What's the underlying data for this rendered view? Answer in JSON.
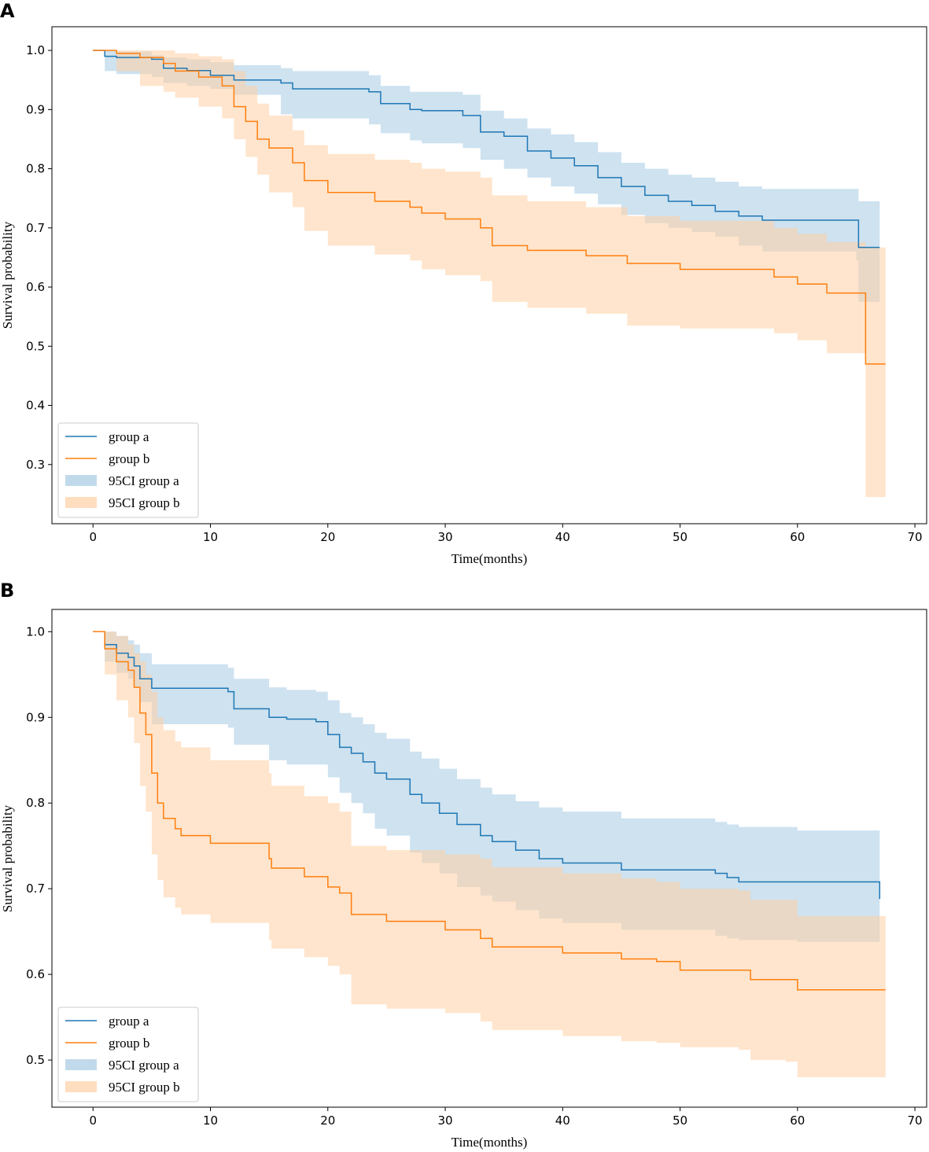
{
  "chart_data": [
    {
      "type": "line",
      "panel": "A",
      "title": "",
      "xlabel": "Time(months)",
      "ylabel": "Survival probability",
      "xlim": [
        -3.5,
        71
      ],
      "ylim": [
        0.2,
        1.04
      ],
      "xticks": [
        0,
        10,
        20,
        30,
        40,
        50,
        60,
        70
      ],
      "yticks": [
        0.3,
        0.4,
        0.5,
        0.6,
        0.7,
        0.8,
        0.9,
        1.0
      ],
      "ytick_labels": [
        "0.3",
        "0.4",
        "0.5",
        "0.6",
        "0.7",
        "0.8",
        "0.9",
        "1.0"
      ],
      "legend_position": "lower-left",
      "colors": {
        "group_a": "#1f77b4",
        "group_b": "#ff7f0e"
      },
      "series": [
        {
          "name": "group a",
          "x": [
            0,
            1,
            2,
            5,
            6,
            8,
            10,
            12,
            16,
            17,
            23.5,
            24.5,
            27,
            28,
            31.5,
            33,
            35,
            37,
            39,
            41,
            43,
            45,
            47,
            49,
            51,
            53,
            55,
            57,
            65,
            65.2,
            67
          ],
          "y": [
            1.0,
            0.99,
            0.988,
            0.985,
            0.97,
            0.966,
            0.958,
            0.95,
            0.945,
            0.935,
            0.93,
            0.91,
            0.9,
            0.898,
            0.89,
            0.862,
            0.855,
            0.83,
            0.818,
            0.805,
            0.785,
            0.77,
            0.755,
            0.745,
            0.738,
            0.728,
            0.72,
            0.713,
            0.713,
            0.667,
            0.667
          ],
          "ci_lower": [
            1.0,
            0.965,
            0.96,
            0.955,
            0.945,
            0.94,
            0.935,
            0.925,
            0.892,
            0.885,
            0.875,
            0.86,
            0.848,
            0.843,
            0.835,
            0.815,
            0.8,
            0.785,
            0.77,
            0.758,
            0.74,
            0.722,
            0.708,
            0.7,
            0.693,
            0.685,
            0.67,
            0.66,
            0.645,
            0.575,
            0.575
          ],
          "ci_upper": [
            1.0,
            1.0,
            0.998,
            0.992,
            0.988,
            0.985,
            0.98,
            0.975,
            0.97,
            0.965,
            0.958,
            0.94,
            0.93,
            0.93,
            0.925,
            0.898,
            0.885,
            0.868,
            0.858,
            0.845,
            0.828,
            0.81,
            0.8,
            0.79,
            0.785,
            0.778,
            0.77,
            0.766,
            0.766,
            0.745,
            0.745
          ]
        },
        {
          "name": "group b",
          "x": [
            0,
            2,
            4,
            6,
            7,
            9,
            11,
            12,
            13,
            14,
            15,
            17,
            18,
            20,
            24,
            27,
            28,
            30,
            33,
            34,
            37,
            42,
            45.5,
            50,
            58,
            60,
            62.5,
            65.8,
            67.5
          ],
          "y": [
            1.0,
            0.995,
            0.988,
            0.978,
            0.965,
            0.955,
            0.94,
            0.905,
            0.88,
            0.85,
            0.835,
            0.81,
            0.78,
            0.76,
            0.745,
            0.735,
            0.725,
            0.715,
            0.7,
            0.67,
            0.662,
            0.653,
            0.64,
            0.63,
            0.617,
            0.605,
            0.59,
            0.47,
            0.47
          ],
          "ci_lower": [
            1.0,
            0.965,
            0.94,
            0.93,
            0.92,
            0.905,
            0.885,
            0.85,
            0.82,
            0.79,
            0.76,
            0.735,
            0.695,
            0.67,
            0.655,
            0.645,
            0.63,
            0.62,
            0.61,
            0.575,
            0.565,
            0.555,
            0.535,
            0.53,
            0.522,
            0.51,
            0.488,
            0.245,
            0.245
          ],
          "ci_upper": [
            1.0,
            1.0,
            1.0,
            1.0,
            0.995,
            0.99,
            0.985,
            0.965,
            0.94,
            0.91,
            0.89,
            0.865,
            0.84,
            0.825,
            0.815,
            0.81,
            0.8,
            0.795,
            0.785,
            0.755,
            0.745,
            0.735,
            0.72,
            0.712,
            0.7,
            0.69,
            0.676,
            0.667,
            0.667
          ]
        }
      ],
      "legend": [
        "group a",
        "group b",
        "95CI group a",
        "95CI group b"
      ]
    },
    {
      "type": "line",
      "panel": "B",
      "title": "",
      "xlabel": "Time(months)",
      "ylabel": "Survival probability",
      "xlim": [
        -3.5,
        71
      ],
      "ylim": [
        0.445,
        1.026
      ],
      "xticks": [
        0,
        10,
        20,
        30,
        40,
        50,
        60,
        70
      ],
      "yticks": [
        0.5,
        0.6,
        0.7,
        0.8,
        0.9,
        1.0
      ],
      "ytick_labels": [
        "0.5",
        "0.6",
        "0.7",
        "0.8",
        "0.9",
        "1.0"
      ],
      "legend_position": "lower-left",
      "colors": {
        "group_a": "#1f77b4",
        "group_b": "#ff7f0e"
      },
      "series": [
        {
          "name": "group a",
          "x": [
            0,
            1,
            2,
            3,
            3.5,
            4,
            5,
            11.5,
            12,
            15,
            16.5,
            19,
            20,
            21,
            22,
            23,
            24,
            25,
            27,
            28,
            29.5,
            31,
            33,
            34,
            36,
            38,
            40,
            45,
            53,
            54,
            55,
            60,
            64.8,
            67
          ],
          "y": [
            1.0,
            0.985,
            0.975,
            0.97,
            0.96,
            0.945,
            0.934,
            0.93,
            0.91,
            0.9,
            0.898,
            0.895,
            0.88,
            0.865,
            0.858,
            0.848,
            0.835,
            0.828,
            0.81,
            0.8,
            0.788,
            0.775,
            0.762,
            0.755,
            0.745,
            0.735,
            0.73,
            0.722,
            0.718,
            0.713,
            0.708,
            0.708,
            0.708,
            0.688
          ],
          "ci_lower": [
            1.0,
            0.965,
            0.952,
            0.945,
            0.935,
            0.918,
            0.892,
            0.888,
            0.868,
            0.85,
            0.845,
            0.845,
            0.83,
            0.812,
            0.8,
            0.788,
            0.77,
            0.762,
            0.742,
            0.73,
            0.718,
            0.702,
            0.692,
            0.685,
            0.675,
            0.665,
            0.66,
            0.652,
            0.645,
            0.642,
            0.64,
            0.638,
            0.638,
            0.608
          ],
          "ci_upper": [
            1.0,
            1.0,
            0.995,
            0.99,
            0.985,
            0.975,
            0.962,
            0.958,
            0.945,
            0.935,
            0.932,
            0.93,
            0.92,
            0.905,
            0.9,
            0.892,
            0.882,
            0.875,
            0.86,
            0.852,
            0.84,
            0.828,
            0.818,
            0.81,
            0.802,
            0.795,
            0.79,
            0.782,
            0.778,
            0.775,
            0.772,
            0.768,
            0.768,
            0.755
          ]
        },
        {
          "name": "group b",
          "x": [
            0,
            1,
            2,
            3,
            3.5,
            4,
            4.5,
            5,
            5.5,
            6,
            7,
            7.5,
            10,
            15,
            15.2,
            18,
            20,
            21,
            22,
            25,
            30,
            33,
            34,
            40,
            45,
            48,
            50,
            55,
            56,
            59,
            60,
            67.5
          ],
          "y": [
            1.0,
            0.98,
            0.965,
            0.955,
            0.935,
            0.905,
            0.88,
            0.835,
            0.8,
            0.782,
            0.77,
            0.762,
            0.753,
            0.735,
            0.724,
            0.714,
            0.702,
            0.695,
            0.67,
            0.662,
            0.652,
            0.642,
            0.632,
            0.625,
            0.618,
            0.615,
            0.605,
            0.605,
            0.594,
            0.594,
            0.582,
            0.582
          ],
          "ci_lower": [
            1.0,
            0.95,
            0.92,
            0.9,
            0.87,
            0.82,
            0.79,
            0.74,
            0.71,
            0.69,
            0.678,
            0.67,
            0.66,
            0.64,
            0.63,
            0.62,
            0.61,
            0.6,
            0.565,
            0.56,
            0.555,
            0.545,
            0.535,
            0.528,
            0.522,
            0.52,
            0.515,
            0.512,
            0.5,
            0.498,
            0.48,
            0.48
          ],
          "ci_upper": [
            1.0,
            1.0,
            0.995,
            0.985,
            0.975,
            0.965,
            0.95,
            0.93,
            0.9,
            0.885,
            0.872,
            0.865,
            0.85,
            0.835,
            0.82,
            0.808,
            0.8,
            0.79,
            0.75,
            0.745,
            0.74,
            0.735,
            0.725,
            0.718,
            0.712,
            0.708,
            0.7,
            0.698,
            0.687,
            0.687,
            0.668,
            0.668
          ]
        }
      ],
      "legend": [
        "group a",
        "group b",
        "95CI group a",
        "95CI group b"
      ]
    }
  ]
}
